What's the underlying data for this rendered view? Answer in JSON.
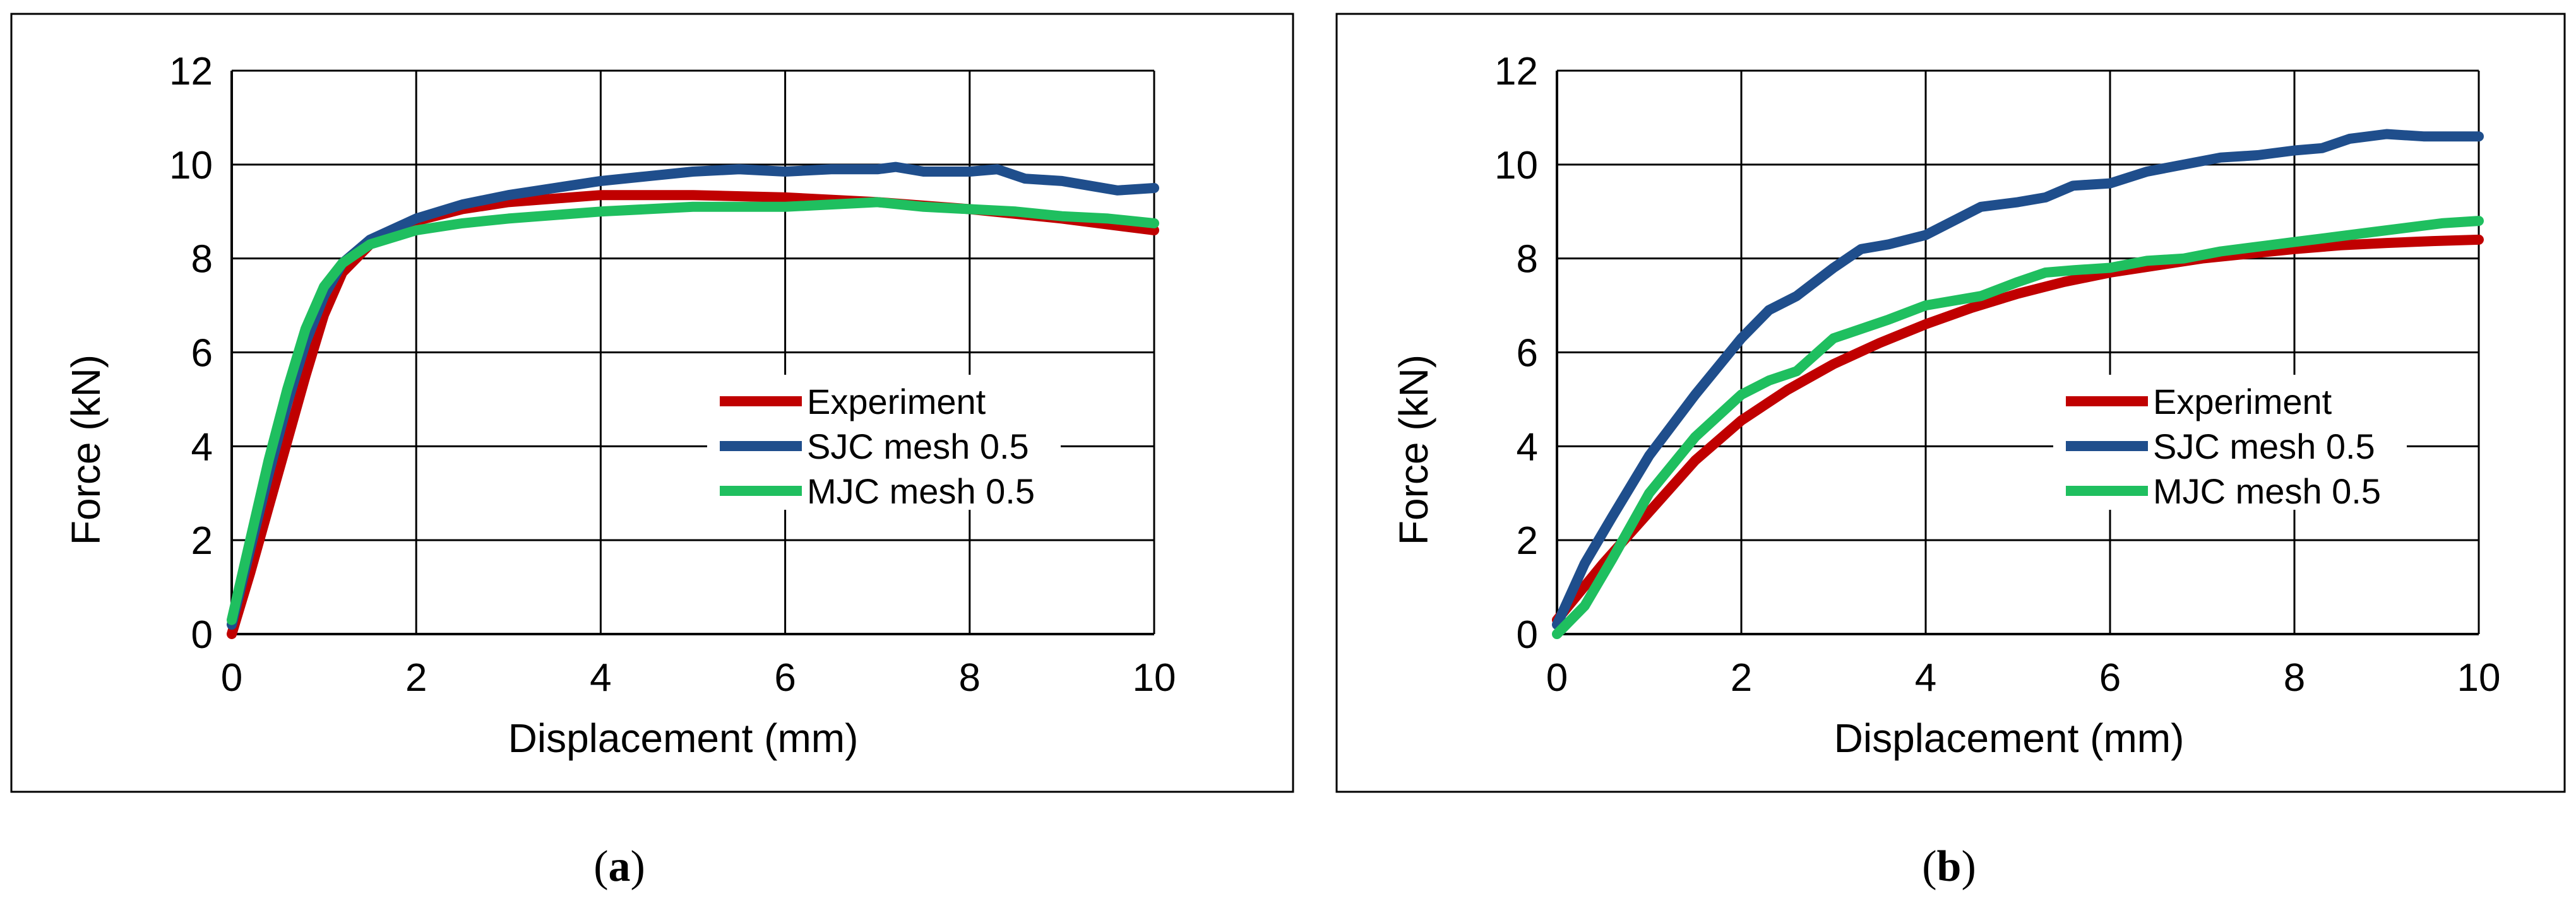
{
  "colors": {
    "experiment": "#c00000",
    "sjc": "#1f4e8c",
    "mjc": "#1fbf5f",
    "grid": "#000000",
    "frame": "#000000"
  },
  "chart_data": [
    {
      "type": "line",
      "caption_letter": "a",
      "caption_full": "(a)",
      "xlabel": "Displacement (mm)",
      "ylabel": "Force (kN)",
      "xlim": [
        0,
        10
      ],
      "ylim": [
        0,
        12
      ],
      "xticks": [
        "0",
        "2",
        "4",
        "6",
        "8",
        "10"
      ],
      "yticks": [
        "0",
        "2",
        "4",
        "6",
        "8",
        "10",
        "12"
      ],
      "legend_position": "center-right",
      "series": [
        {
          "name": "Experiment",
          "color_key": "experiment",
          "x": [
            0,
            0.2,
            0.4,
            0.6,
            0.8,
            1.0,
            1.2,
            1.5,
            2,
            2.5,
            3,
            4,
            5,
            6,
            7,
            8,
            9,
            10
          ],
          "y": [
            0,
            1.3,
            2.7,
            4.1,
            5.5,
            6.8,
            7.7,
            8.3,
            8.8,
            9.05,
            9.2,
            9.35,
            9.35,
            9.3,
            9.2,
            9.05,
            8.85,
            8.6
          ]
        },
        {
          "name": "SJC mesh 0.5",
          "color_key": "sjc",
          "x": [
            0,
            0.2,
            0.4,
            0.6,
            0.8,
            1.0,
            1.2,
            1.5,
            2,
            2.5,
            3,
            3.5,
            4,
            4.5,
            5,
            5.5,
            6,
            6.5,
            7,
            7.2,
            7.5,
            8,
            8.3,
            8.6,
            9,
            9.3,
            9.6,
            10
          ],
          "y": [
            0.2,
            1.8,
            3.4,
            4.9,
            6.2,
            7.2,
            7.9,
            8.4,
            8.85,
            9.15,
            9.35,
            9.5,
            9.65,
            9.75,
            9.85,
            9.9,
            9.85,
            9.9,
            9.9,
            9.95,
            9.85,
            9.85,
            9.9,
            9.7,
            9.65,
            9.55,
            9.45,
            9.5
          ]
        },
        {
          "name": "MJC mesh 0.5",
          "color_key": "mjc",
          "x": [
            0,
            0.2,
            0.4,
            0.6,
            0.8,
            1.0,
            1.2,
            1.5,
            2,
            2.5,
            3,
            4,
            5,
            6,
            7,
            7.5,
            8,
            8.5,
            9,
            9.5,
            10
          ],
          "y": [
            0.3,
            2.0,
            3.7,
            5.2,
            6.5,
            7.4,
            7.9,
            8.3,
            8.6,
            8.75,
            8.85,
            9.0,
            9.1,
            9.1,
            9.2,
            9.1,
            9.05,
            9.0,
            8.9,
            8.85,
            8.75
          ]
        }
      ]
    },
    {
      "type": "line",
      "caption_letter": "b",
      "caption_full": "(b)",
      "xlabel": "Displacement (mm)",
      "ylabel": "Force (kN)",
      "xlim": [
        0,
        10
      ],
      "ylim": [
        0,
        12
      ],
      "xticks": [
        "0",
        "2",
        "4",
        "6",
        "8",
        "10"
      ],
      "yticks": [
        "0",
        "2",
        "4",
        "6",
        "8",
        "10",
        "12"
      ],
      "legend_position": "center-right",
      "series": [
        {
          "name": "Experiment",
          "color_key": "experiment",
          "x": [
            0,
            0.5,
            1,
            1.5,
            2,
            2.5,
            3,
            3.5,
            4,
            4.5,
            5,
            5.5,
            6,
            6.5,
            7,
            7.5,
            8,
            8.5,
            9,
            9.5,
            10
          ],
          "y": [
            0.3,
            1.5,
            2.6,
            3.7,
            4.55,
            5.2,
            5.75,
            6.2,
            6.6,
            6.95,
            7.25,
            7.5,
            7.7,
            7.85,
            8.0,
            8.1,
            8.2,
            8.28,
            8.33,
            8.37,
            8.4
          ]
        },
        {
          "name": "SJC mesh 0.5",
          "color_key": "sjc",
          "x": [
            0,
            0.3,
            0.6,
            1.0,
            1.5,
            2.0,
            2.3,
            2.6,
            3.0,
            3.3,
            3.6,
            4.0,
            4.3,
            4.6,
            5.0,
            5.3,
            5.6,
            6.0,
            6.4,
            6.8,
            7.2,
            7.6,
            8.0,
            8.3,
            8.6,
            9.0,
            9.4,
            10
          ],
          "y": [
            0.2,
            1.5,
            2.5,
            3.8,
            5.1,
            6.3,
            6.9,
            7.2,
            7.8,
            8.2,
            8.3,
            8.5,
            8.8,
            9.1,
            9.2,
            9.3,
            9.55,
            9.6,
            9.85,
            10.0,
            10.15,
            10.2,
            10.3,
            10.35,
            10.55,
            10.65,
            10.6,
            10.6
          ]
        },
        {
          "name": "MJC mesh 0.5",
          "color_key": "mjc",
          "x": [
            0,
            0.3,
            0.6,
            1.0,
            1.5,
            2.0,
            2.3,
            2.6,
            3.0,
            3.3,
            3.6,
            4.0,
            4.3,
            4.6,
            5.0,
            5.3,
            5.6,
            6.0,
            6.4,
            6.8,
            7.2,
            7.6,
            8.0,
            8.4,
            8.8,
            9.2,
            9.6,
            10
          ],
          "y": [
            0,
            0.6,
            1.6,
            3.0,
            4.2,
            5.1,
            5.4,
            5.6,
            6.3,
            6.5,
            6.7,
            7.0,
            7.1,
            7.2,
            7.5,
            7.7,
            7.75,
            7.8,
            7.95,
            8.0,
            8.15,
            8.25,
            8.35,
            8.45,
            8.55,
            8.65,
            8.75,
            8.8
          ]
        }
      ]
    }
  ]
}
